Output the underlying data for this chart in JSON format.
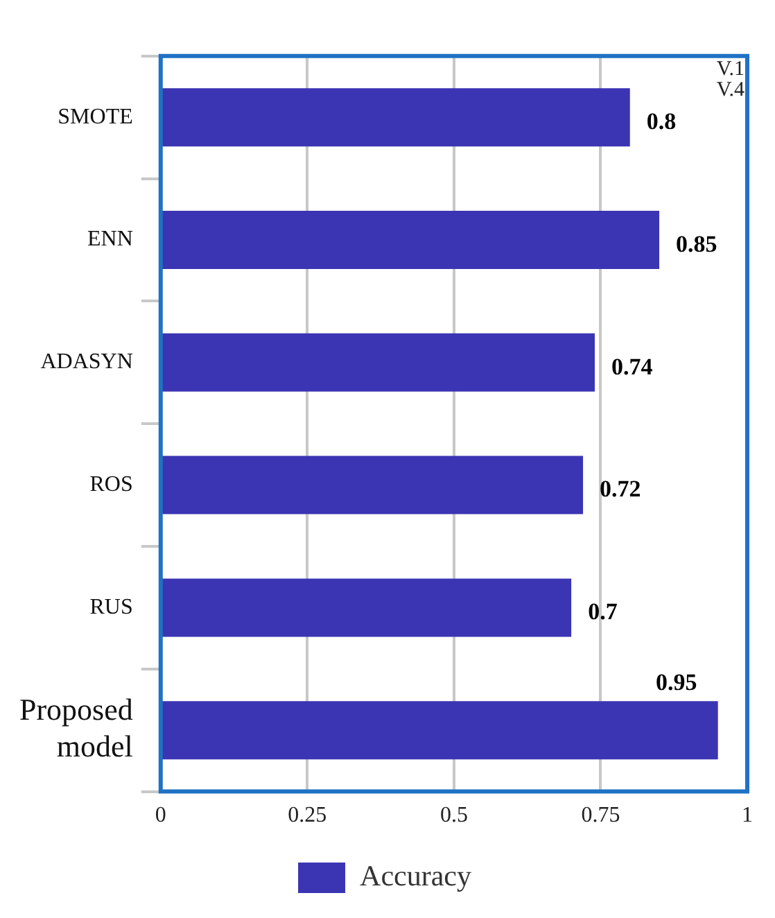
{
  "chart_data": {
    "type": "bar",
    "orientation": "horizontal",
    "categories": [
      "SMOTE",
      "ENN",
      "ADASYN",
      "ROS",
      "RUS",
      "Proposed model"
    ],
    "series": [
      {
        "name": "Accuracy",
        "color": "#3b35b3",
        "values": [
          0.8,
          0.85,
          0.74,
          0.72,
          0.7,
          0.95
        ]
      }
    ],
    "xlim": [
      0,
      1
    ],
    "xticks": [
      0,
      0.25,
      0.5,
      0.75,
      1
    ],
    "grid": "x",
    "legend": "bottom",
    "data_labels": true,
    "annotations": [
      "V.1",
      "V.4"
    ]
  }
}
